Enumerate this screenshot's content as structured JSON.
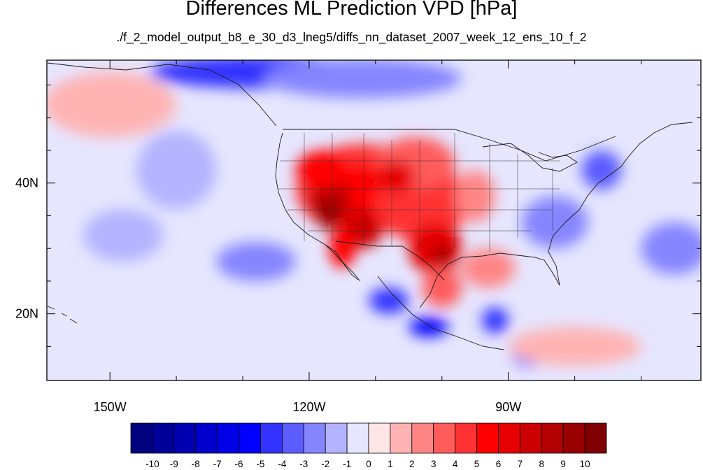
{
  "title": "Differences ML Prediction VPD [hPa]",
  "subtitle": "./f_2_model_output_b8_e_30_d3_lneg5/diffs_nn_dataset_2007_week_12_ens_10_f_2",
  "map": {
    "lon_range": [
      -159.5,
      -61
    ],
    "lat_range": [
      9.8,
      58.8
    ],
    "x_ticks": [
      {
        "lon": -150,
        "label": "150W"
      },
      {
        "lon": -120,
        "label": "120W"
      },
      {
        "lon": -90,
        "label": "90W"
      }
    ],
    "x_minor_ticks": [
      -140,
      -130,
      -110,
      -100,
      -80,
      -70
    ],
    "y_ticks": [
      {
        "lat": 40,
        "label": "40N"
      },
      {
        "lat": 20,
        "label": "20N"
      }
    ],
    "y_minor_ticks": [
      15,
      25,
      30,
      35,
      45,
      50,
      55
    ]
  },
  "colorbar": {
    "labels": [
      "-10",
      "-9",
      "-8",
      "-7",
      "-6",
      "-5",
      "-4",
      "-3",
      "-2",
      "-1",
      "0",
      "1",
      "2",
      "3",
      "4",
      "5",
      "6",
      "7",
      "8",
      "9",
      "10"
    ],
    "colors": [
      "#00007f",
      "#000099",
      "#0000b3",
      "#0000cc",
      "#0000e6",
      "#0000ff",
      "#3333ff",
      "#5c5cff",
      "#8585ff",
      "#b3b3ff",
      "#e6e6ff",
      "#ffe6e6",
      "#ffb3b3",
      "#ff8585",
      "#ff5c5c",
      "#ff3333",
      "#ff0000",
      "#e60000",
      "#cc0000",
      "#b30000",
      "#990000",
      "#7f0000"
    ]
  },
  "chart_data": {
    "type": "heatmap",
    "title": "Differences ML Prediction VPD [hPa]",
    "subtitle": "./f_2_model_output_b8_e_30_d3_lneg5/diffs_nn_dataset_2007_week_12_ens_10_f_2",
    "x_ticks": [
      "150W",
      "120W",
      "90W"
    ],
    "y_ticks": [
      "40N",
      "20N"
    ],
    "colorbar_ticks": [
      -10,
      -9,
      -8,
      -7,
      -6,
      -5,
      -4,
      -3,
      -2,
      -1,
      0,
      1,
      2,
      3,
      4,
      5,
      6,
      7,
      8,
      9,
      10
    ],
    "value_range": [
      -10,
      10
    ],
    "background_value": -1,
    "regions": [
      {
        "lon": -112,
        "lat": 39,
        "r_lon": 10,
        "r_lat": 7,
        "value": 4
      },
      {
        "lon": -111,
        "lat": 38,
        "r_lon": 7,
        "r_lat": 5,
        "value": 5
      },
      {
        "lon": -103,
        "lat": 37,
        "r_lon": 7,
        "r_lat": 6,
        "value": 4
      },
      {
        "lon": -104,
        "lat": 43,
        "r_lon": 6,
        "r_lat": 4,
        "value": 3
      },
      {
        "lon": -95,
        "lat": 38,
        "r_lon": 3,
        "r_lat": 4,
        "value": 2
      },
      {
        "lon": -117,
        "lat": 38,
        "r_lon": 3,
        "r_lat": 4,
        "value": 8
      },
      {
        "lon": -117,
        "lat": 35,
        "r_lon": 2,
        "r_lat": 2,
        "value": 9
      },
      {
        "lon": -112,
        "lat": 33,
        "r_lon": 3,
        "r_lat": 3,
        "value": 7
      },
      {
        "lon": -101,
        "lat": 30,
        "r_lon": 4,
        "r_lat": 4,
        "value": 6
      },
      {
        "lon": -100,
        "lat": 29,
        "r_lon": 1.5,
        "r_lat": 1.5,
        "value": 9
      },
      {
        "lon": -118,
        "lat": 42,
        "r_lon": 4,
        "r_lat": 3,
        "value": 5
      },
      {
        "lon": -107,
        "lat": 41,
        "r_lon": 3,
        "r_lat": 2.5,
        "value": 6
      },
      {
        "lon": -93,
        "lat": 27,
        "r_lon": 4,
        "r_lat": 3,
        "value": 2
      },
      {
        "lon": -100,
        "lat": 24,
        "r_lon": 3,
        "r_lat": 3,
        "value": 3
      },
      {
        "lon": -115,
        "lat": 30,
        "r_lon": 2,
        "r_lat": 3,
        "value": 5
      },
      {
        "lon": -128,
        "lat": 57,
        "r_lon": 16,
        "r_lat": 2.5,
        "value": -5
      },
      {
        "lon": -112,
        "lat": 56,
        "r_lon": 15,
        "r_lat": 3,
        "value": -3
      },
      {
        "lon": -108,
        "lat": 22,
        "r_lon": 3,
        "r_lat": 2,
        "value": -5
      },
      {
        "lon": -102,
        "lat": 18,
        "r_lon": 3,
        "r_lat": 1.5,
        "value": -6
      },
      {
        "lon": -92,
        "lat": 19,
        "r_lon": 2,
        "r_lat": 2,
        "value": -5
      },
      {
        "lon": -87,
        "lat": 14,
        "r_lon": 2.5,
        "r_lat": 2,
        "value": -4
      },
      {
        "lon": -83,
        "lat": 34,
        "r_lon": 5,
        "r_lat": 4,
        "value": -3
      },
      {
        "lon": -76,
        "lat": 42,
        "r_lon": 3,
        "r_lat": 3,
        "value": -4
      },
      {
        "lon": -65,
        "lat": 30,
        "r_lon": 5,
        "r_lat": 4,
        "value": -3
      },
      {
        "lon": -140,
        "lat": 42,
        "r_lon": 6,
        "r_lat": 6,
        "value": -2
      },
      {
        "lon": -128,
        "lat": 28,
        "r_lon": 6,
        "r_lat": 3,
        "value": -3
      },
      {
        "lon": -148,
        "lat": 32,
        "r_lon": 6,
        "r_lat": 4,
        "value": -2
      },
      {
        "lon": -150,
        "lat": 52,
        "r_lon": 10,
        "r_lat": 5,
        "value": 1
      },
      {
        "lon": -80,
        "lat": 15,
        "r_lon": 10,
        "r_lat": 3,
        "value": 1
      }
    ]
  }
}
